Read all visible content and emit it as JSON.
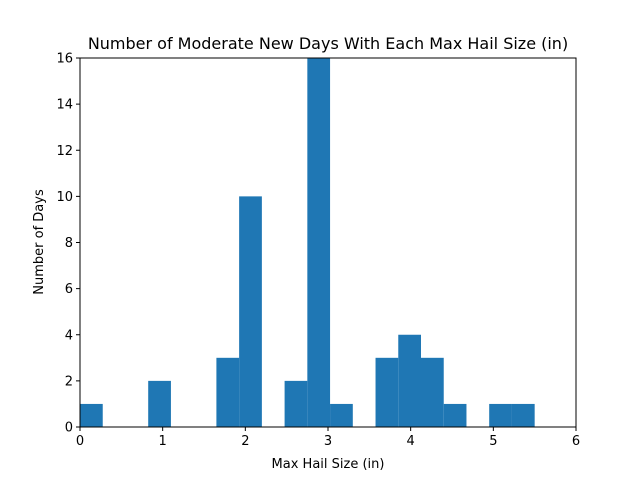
{
  "chart_data": {
    "type": "bar",
    "title": "Number of Moderate New Days With Each Max Hail Size (in)",
    "xlabel": "Max Hail Size (in)",
    "ylabel": "Number of Days",
    "xlim": [
      0,
      6
    ],
    "ylim": [
      0,
      16
    ],
    "x_ticks": [
      "0",
      "1",
      "2",
      "3",
      "4",
      "5",
      "6"
    ],
    "y_ticks": [
      "0",
      "2",
      "4",
      "6",
      "8",
      "10",
      "12",
      "14",
      "16"
    ],
    "bin_width": 0.275,
    "bins": [
      {
        "x_start": 0.0,
        "count": 1
      },
      {
        "x_start": 0.825,
        "count": 2
      },
      {
        "x_start": 1.65,
        "count": 3
      },
      {
        "x_start": 1.925,
        "count": 10
      },
      {
        "x_start": 2.475,
        "count": 2
      },
      {
        "x_start": 2.75,
        "count": 16
      },
      {
        "x_start": 3.025,
        "count": 1
      },
      {
        "x_start": 3.575,
        "count": 3
      },
      {
        "x_start": 3.85,
        "count": 4
      },
      {
        "x_start": 4.125,
        "count": 3
      },
      {
        "x_start": 4.4,
        "count": 1
      },
      {
        "x_start": 4.95,
        "count": 1
      },
      {
        "x_start": 5.225,
        "count": 1
      }
    ],
    "bar_color": "#1f77b4",
    "grid": false,
    "legend": "none"
  }
}
